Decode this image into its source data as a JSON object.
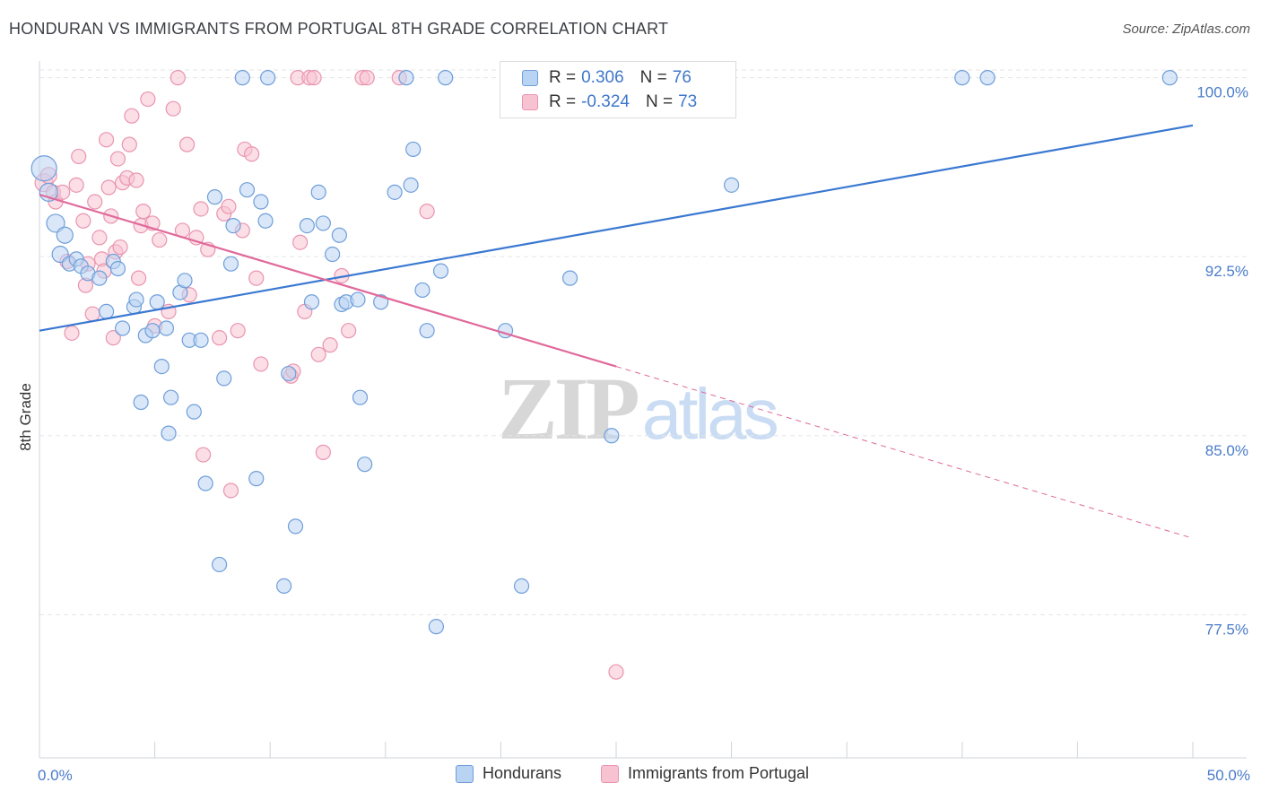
{
  "title": "HONDURAN VS IMMIGRANTS FROM PORTUGAL 8TH GRADE CORRELATION CHART",
  "source": "Source: ZipAtlas.com",
  "watermark": {
    "part1": "ZIP",
    "part2": "atlas"
  },
  "colors": {
    "blue_fill": "#b9d3f2",
    "blue_stroke": "#6f9ed9",
    "blue_line": "#3a78d1",
    "pink_fill": "#f7c3d2",
    "pink_stroke": "#e995b0",
    "pink_line": "#e0699a",
    "grid": "#e3e6ea",
    "tick_text": "#4a7cc9"
  },
  "legend": {
    "rows": [
      {
        "r_label": "R =",
        "r_value": "0.306",
        "n_label": "N =",
        "n_value": "76"
      },
      {
        "r_label": "R =",
        "r_value": "-0.324",
        "n_label": "N =",
        "n_value": "73"
      }
    ]
  },
  "bottom_legend": [
    "Hondurans",
    "Immigrants from Portugal"
  ],
  "chart_data": {
    "type": "scatter",
    "xlabel": "",
    "ylabel": "8th Grade",
    "xlim": [
      0,
      50
    ],
    "ylim": [
      71.5,
      101
    ],
    "x_tick_labels": [
      "0.0%",
      "50.0%"
    ],
    "y_ticks": [
      77.5,
      85.0,
      92.5,
      100.0
    ],
    "y_tick_labels": [
      "77.5%",
      "85.0%",
      "92.5%",
      "100.0%"
    ],
    "grid": true,
    "legend_position": "top-center",
    "series": [
      {
        "name": "Hondurans",
        "r": 0.306,
        "n": 76,
        "trend": {
          "x": [
            0,
            50
          ],
          "y": [
            89.4,
            98.0
          ],
          "dashed_from": null
        },
        "points": [
          [
            0.2,
            96.2,
            14
          ],
          [
            0.4,
            95.2,
            10
          ],
          [
            0.7,
            93.9,
            10
          ],
          [
            0.9,
            92.6,
            9
          ],
          [
            1.1,
            93.4,
            9
          ],
          [
            1.3,
            92.2,
            8
          ],
          [
            1.6,
            92.4,
            8
          ],
          [
            1.8,
            92.1,
            8
          ],
          [
            2.1,
            91.8,
            8
          ],
          [
            2.6,
            91.6,
            8
          ],
          [
            2.9,
            90.2,
            8
          ],
          [
            3.2,
            92.3,
            8
          ],
          [
            3.4,
            92.0,
            8
          ],
          [
            3.6,
            89.5,
            8
          ],
          [
            4.1,
            90.4,
            8
          ],
          [
            4.2,
            90.7,
            8
          ],
          [
            4.4,
            86.4,
            8
          ],
          [
            4.6,
            89.2,
            8
          ],
          [
            4.9,
            89.4,
            8
          ],
          [
            5.1,
            90.6,
            8
          ],
          [
            5.3,
            87.9,
            8
          ],
          [
            5.6,
            85.1,
            8
          ],
          [
            5.7,
            86.6,
            8
          ],
          [
            6.1,
            91.0,
            8
          ],
          [
            6.3,
            91.5,
            8
          ],
          [
            6.5,
            89.0,
            8
          ],
          [
            6.7,
            86.0,
            8
          ],
          [
            7.0,
            89.0,
            8
          ],
          [
            7.2,
            83.0,
            8
          ],
          [
            7.6,
            95.0,
            8
          ],
          [
            7.8,
            79.6,
            8
          ],
          [
            8.0,
            87.4,
            8
          ],
          [
            8.3,
            92.2,
            8
          ],
          [
            8.4,
            93.8,
            8
          ],
          [
            8.8,
            100.0,
            8
          ],
          [
            9.0,
            95.3,
            8
          ],
          [
            9.4,
            83.2,
            8
          ],
          [
            9.6,
            94.8,
            8
          ],
          [
            9.8,
            94.0,
            8
          ],
          [
            9.9,
            100.0,
            8
          ],
          [
            10.6,
            78.7,
            8
          ],
          [
            10.8,
            87.6,
            8
          ],
          [
            11.1,
            81.2,
            8
          ],
          [
            11.6,
            93.8,
            8
          ],
          [
            11.8,
            90.6,
            8
          ],
          [
            12.1,
            95.2,
            8
          ],
          [
            12.3,
            93.9,
            8
          ],
          [
            12.7,
            92.6,
            8
          ],
          [
            13.0,
            93.4,
            8
          ],
          [
            13.1,
            90.5,
            8
          ],
          [
            13.3,
            90.6,
            8
          ],
          [
            13.8,
            90.7,
            8
          ],
          [
            13.9,
            86.6,
            8
          ],
          [
            14.1,
            83.8,
            8
          ],
          [
            14.8,
            90.6,
            8
          ],
          [
            15.4,
            95.2,
            8
          ],
          [
            15.9,
            100.0,
            8
          ],
          [
            16.1,
            95.5,
            8
          ],
          [
            16.2,
            97.0,
            8
          ],
          [
            16.6,
            91.1,
            8
          ],
          [
            16.8,
            89.4,
            8
          ],
          [
            17.2,
            77.0,
            8
          ],
          [
            17.4,
            91.9,
            8
          ],
          [
            17.6,
            100.0,
            8
          ],
          [
            20.2,
            89.4,
            8
          ],
          [
            20.9,
            78.7,
            8
          ],
          [
            23.0,
            91.6,
            8
          ],
          [
            24.8,
            85.0,
            8
          ],
          [
            25.2,
            100.0,
            8
          ],
          [
            25.6,
            100.0,
            8
          ],
          [
            28.7,
            100.0,
            8
          ],
          [
            30.0,
            95.5,
            8
          ],
          [
            40.0,
            100.0,
            8
          ],
          [
            41.1,
            100.0,
            8
          ],
          [
            49.0,
            100.0,
            8
          ],
          [
            5.5,
            89.5,
            8
          ]
        ]
      },
      {
        "name": "Immigrants from Portugal",
        "r": -0.324,
        "n": 73,
        "trend": {
          "x": [
            0,
            50
          ],
          "y": [
            95.1,
            80.7
          ],
          "dashed_from": 25
        },
        "points": [
          [
            0.2,
            95.6,
            10
          ],
          [
            0.4,
            95.9,
            9
          ],
          [
            0.6,
            95.2,
            8
          ],
          [
            0.7,
            94.8,
            8
          ],
          [
            1.0,
            95.2,
            8
          ],
          [
            1.2,
            92.3,
            8
          ],
          [
            1.4,
            89.3,
            8
          ],
          [
            1.6,
            95.5,
            8
          ],
          [
            1.7,
            96.7,
            8
          ],
          [
            1.9,
            94.0,
            8
          ],
          [
            2.0,
            91.3,
            8
          ],
          [
            2.1,
            92.2,
            8
          ],
          [
            2.3,
            90.1,
            8
          ],
          [
            2.4,
            94.8,
            8
          ],
          [
            2.6,
            93.3,
            8
          ],
          [
            2.7,
            92.4,
            8
          ],
          [
            2.8,
            91.9,
            8
          ],
          [
            2.9,
            97.4,
            8
          ],
          [
            3.0,
            95.4,
            8
          ],
          [
            3.1,
            94.2,
            8
          ],
          [
            3.2,
            89.1,
            8
          ],
          [
            3.3,
            92.7,
            8
          ],
          [
            3.4,
            96.6,
            8
          ],
          [
            3.5,
            92.9,
            8
          ],
          [
            3.6,
            95.6,
            8
          ],
          [
            3.8,
            95.8,
            8
          ],
          [
            3.9,
            97.2,
            8
          ],
          [
            4.0,
            98.4,
            8
          ],
          [
            4.2,
            95.7,
            8
          ],
          [
            4.3,
            91.6,
            8
          ],
          [
            4.4,
            93.8,
            8
          ],
          [
            4.5,
            94.4,
            8
          ],
          [
            4.7,
            99.1,
            8
          ],
          [
            4.9,
            93.9,
            8
          ],
          [
            5.0,
            89.6,
            8
          ],
          [
            5.2,
            93.2,
            8
          ],
          [
            5.6,
            90.2,
            8
          ],
          [
            5.8,
            98.7,
            8
          ],
          [
            6.0,
            100.0,
            8
          ],
          [
            6.2,
            93.6,
            8
          ],
          [
            6.4,
            97.2,
            8
          ],
          [
            6.5,
            90.9,
            8
          ],
          [
            6.8,
            93.3,
            8
          ],
          [
            7.0,
            94.5,
            8
          ],
          [
            7.1,
            84.2,
            8
          ],
          [
            7.3,
            92.8,
            8
          ],
          [
            7.8,
            89.1,
            8
          ],
          [
            8.0,
            94.3,
            8
          ],
          [
            8.2,
            94.6,
            8
          ],
          [
            8.3,
            82.7,
            8
          ],
          [
            8.6,
            89.4,
            8
          ],
          [
            8.8,
            93.6,
            8
          ],
          [
            8.9,
            97.0,
            8
          ],
          [
            9.2,
            96.8,
            8
          ],
          [
            9.4,
            91.6,
            8
          ],
          [
            9.6,
            88.0,
            8
          ],
          [
            10.9,
            87.5,
            8
          ],
          [
            11.0,
            87.7,
            8
          ],
          [
            11.2,
            100.0,
            8
          ],
          [
            11.3,
            93.1,
            8
          ],
          [
            11.5,
            90.2,
            8
          ],
          [
            11.7,
            100.0,
            8
          ],
          [
            11.9,
            100.0,
            8
          ],
          [
            12.1,
            88.4,
            8
          ],
          [
            12.3,
            84.3,
            8
          ],
          [
            12.6,
            88.8,
            8
          ],
          [
            13.1,
            91.7,
            8
          ],
          [
            13.4,
            89.4,
            8
          ],
          [
            14.0,
            100.0,
            8
          ],
          [
            14.2,
            100.0,
            8
          ],
          [
            15.6,
            100.0,
            8
          ],
          [
            16.8,
            94.4,
            8
          ],
          [
            25.0,
            75.1,
            8
          ]
        ]
      }
    ]
  }
}
